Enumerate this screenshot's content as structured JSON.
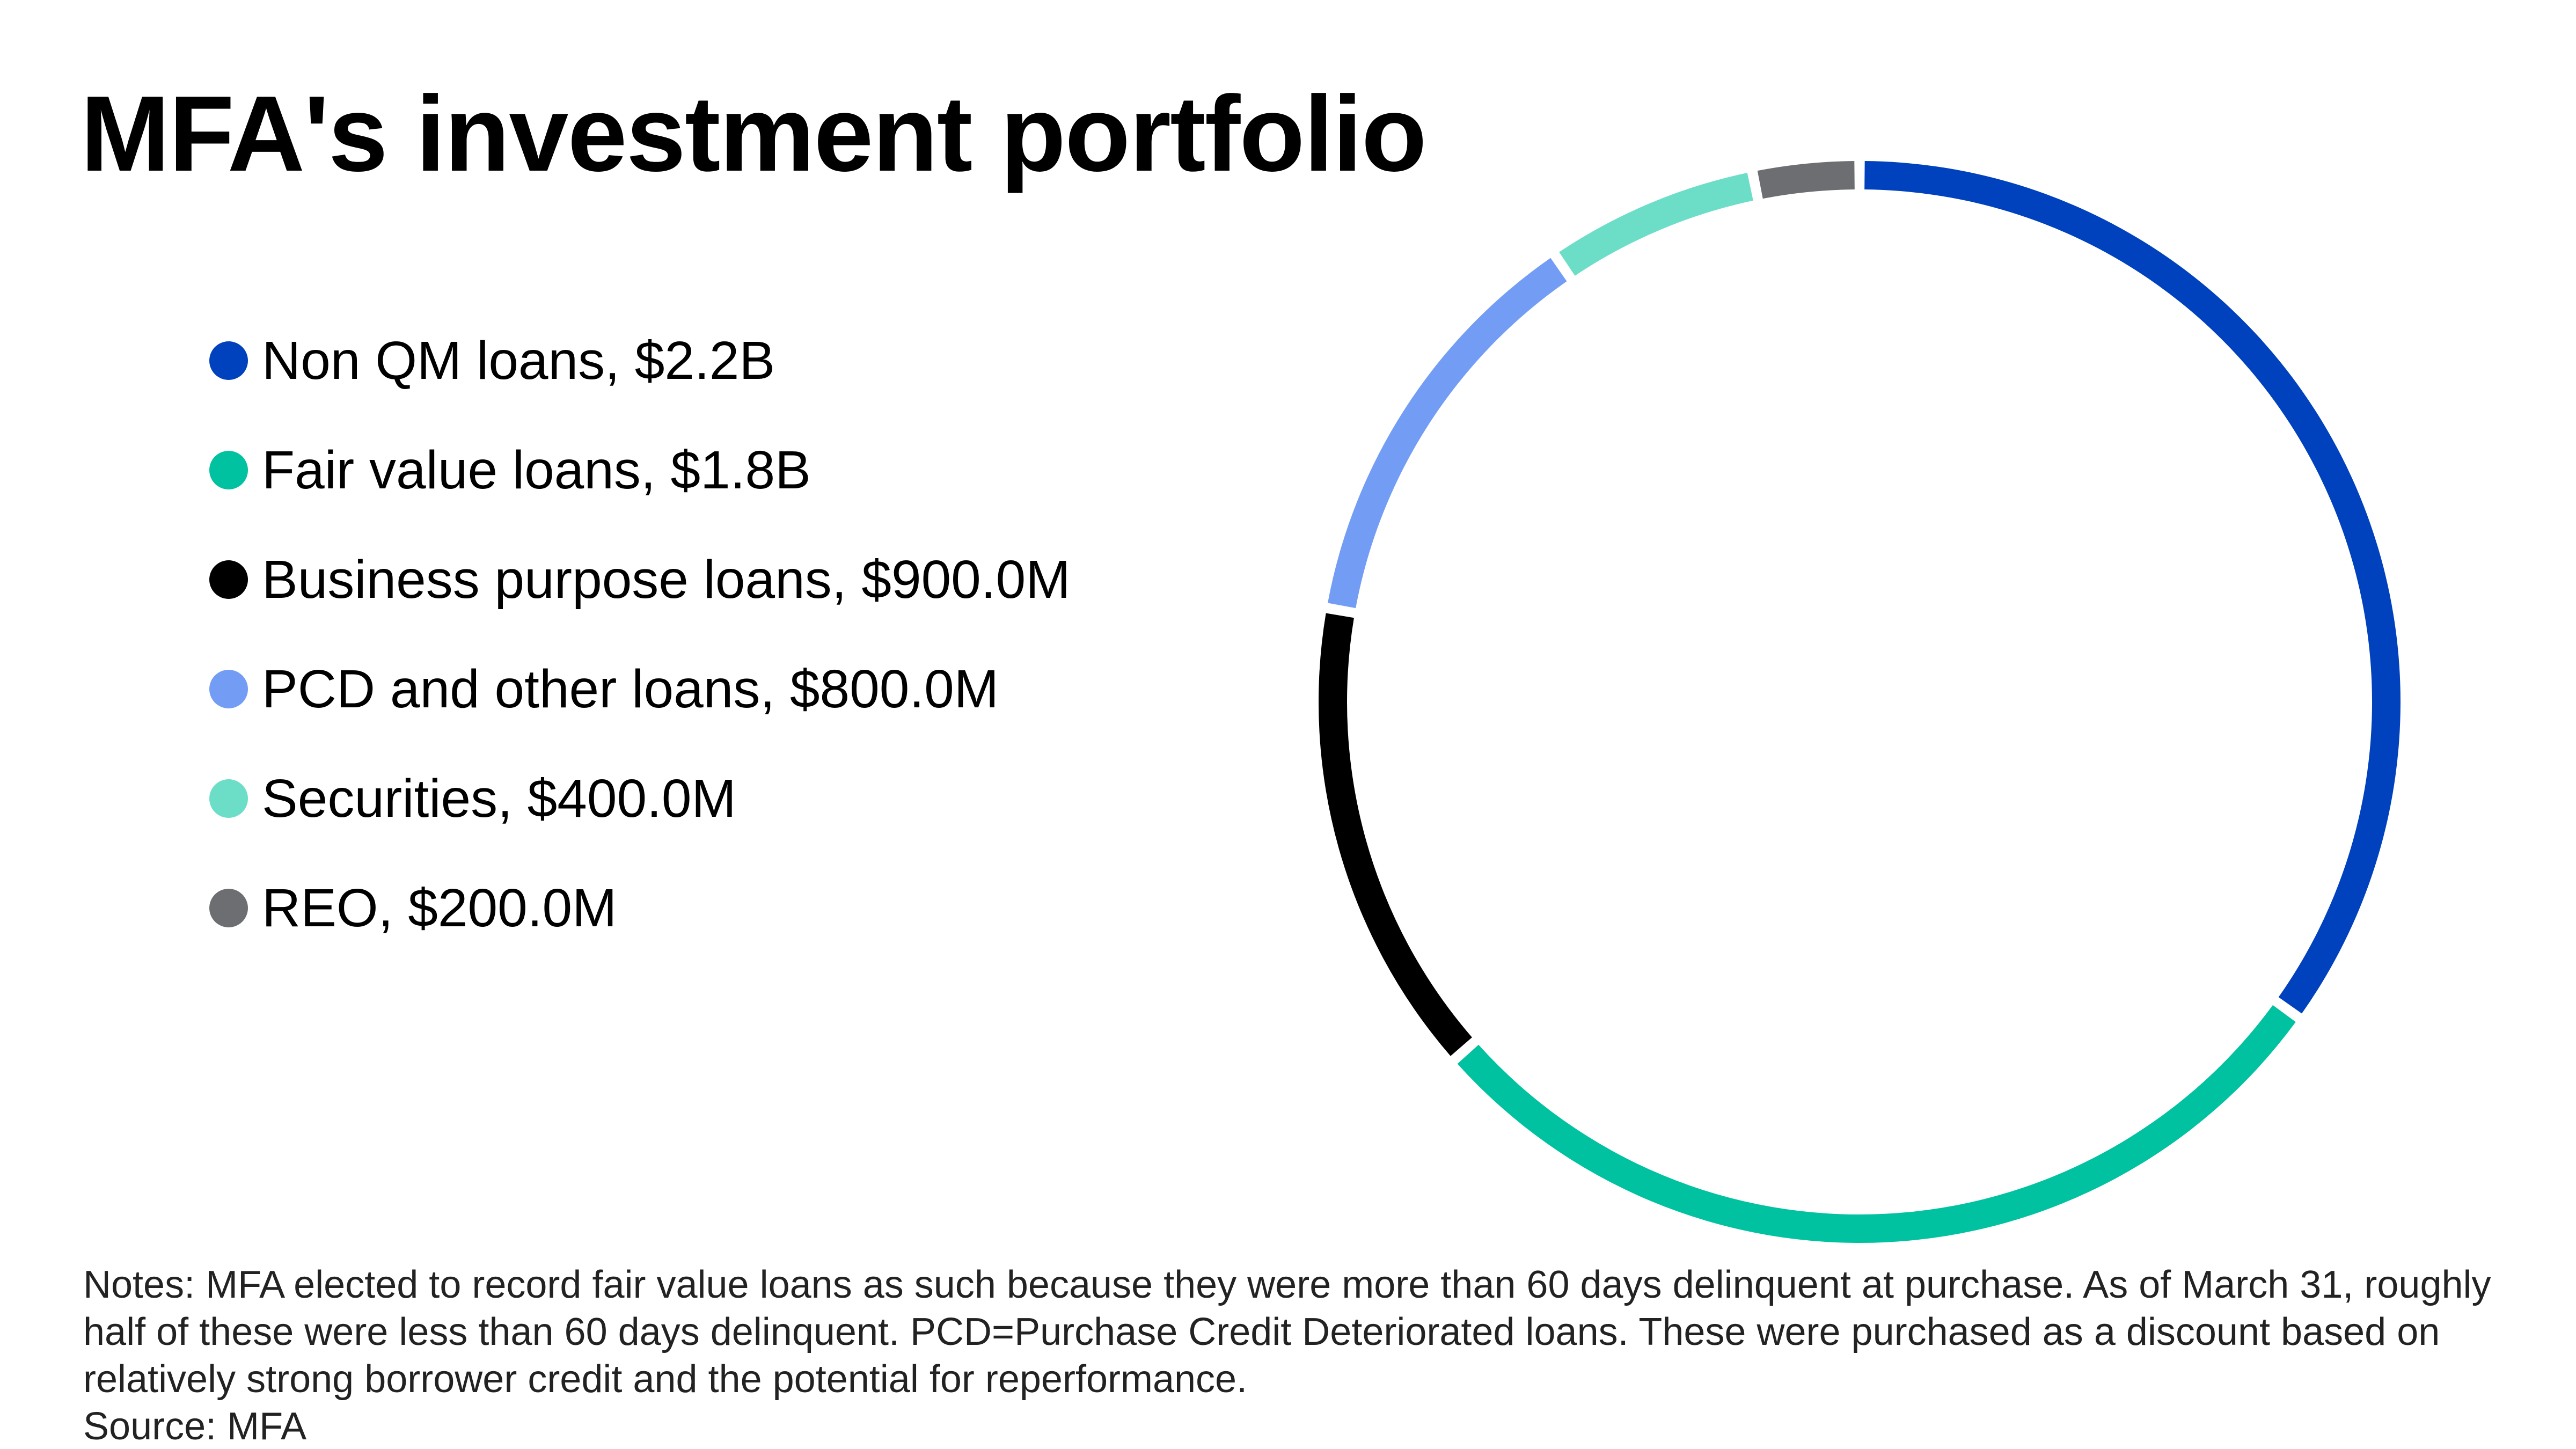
{
  "chart_data": {
    "type": "pie",
    "title": "MFA's investment portfolio",
    "series": [
      {
        "label": "Non QM loans, $2.2B",
        "value": 2200,
        "color": "#0041BD"
      },
      {
        "label": "Fair value loans, $1.8B",
        "value": 1800,
        "color": "#00C2A0"
      },
      {
        "label": "Business purpose loans, $900.0M",
        "value": 900,
        "color": "#000000"
      },
      {
        "label": "PCD and other loans, $800.0M",
        "value": 800,
        "color": "#739DF5"
      },
      {
        "label": "Securities, $400.0M",
        "value": 400,
        "color": "#6CDEC8"
      },
      {
        "label": "REO, $200.0M",
        "value": 200,
        "color": "#6D6E71"
      }
    ],
    "legend_position": "left"
  },
  "notes": "Notes: MFA elected to record fair value loans as such because they were more than 60 days delinquent at purchase. As of March 31, roughly half of these were less than 60 days delinquent. PCD=Purchase Credit Deteriorated loans. These were purchased as a discount based on relatively strong borrower credit and the potential for reperformance.",
  "source": "Source: MFA"
}
